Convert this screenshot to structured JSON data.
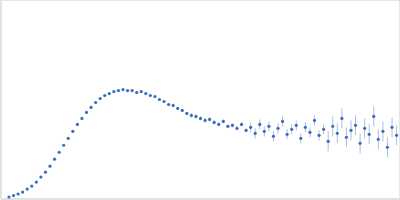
{
  "chart_data": {
    "type": "scatter",
    "color": "#3d6bbd",
    "marker": "circle",
    "grid": true,
    "tick_labels": false,
    "xlim": [
      0,
      0.35
    ],
    "ylim": [
      0,
      0.2
    ],
    "xticks": [
      0.1
    ],
    "yticks": [
      0.1
    ],
    "x": [
      0.007,
      0.011,
      0.015,
      0.019,
      0.023,
      0.027,
      0.031,
      0.035,
      0.039,
      0.043,
      0.047,
      0.051,
      0.055,
      0.059,
      0.063,
      0.067,
      0.071,
      0.075,
      0.079,
      0.083,
      0.087,
      0.091,
      0.095,
      0.099,
      0.103,
      0.107,
      0.111,
      0.115,
      0.119,
      0.123,
      0.127,
      0.131,
      0.135,
      0.139,
      0.143,
      0.147,
      0.151,
      0.155,
      0.159,
      0.163,
      0.167,
      0.171,
      0.175,
      0.179,
      0.183,
      0.187,
      0.191,
      0.195,
      0.199,
      0.203,
      0.207,
      0.211,
      0.215,
      0.219,
      0.223,
      0.227,
      0.231,
      0.235,
      0.239,
      0.243,
      0.247,
      0.251,
      0.255,
      0.259,
      0.263,
      0.267,
      0.271,
      0.275,
      0.279,
      0.283,
      0.287,
      0.291,
      0.295,
      0.299,
      0.303,
      0.307,
      0.311,
      0.315,
      0.319,
      0.323,
      0.327,
      0.331,
      0.335,
      0.339,
      0.343,
      0.347
    ],
    "values": [
      0.002,
      0.0035,
      0.005,
      0.007,
      0.01,
      0.013,
      0.017,
      0.022,
      0.027,
      0.033,
      0.04,
      0.047,
      0.054,
      0.061,
      0.068,
      0.075,
      0.081,
      0.087,
      0.092,
      0.097,
      0.101,
      0.104,
      0.106,
      0.108,
      0.109,
      0.11,
      0.109,
      0.109,
      0.107,
      0.108,
      0.106,
      0.104,
      0.103,
      0.1,
      0.098,
      0.095,
      0.094,
      0.091,
      0.089,
      0.086,
      0.084,
      0.083,
      0.081,
      0.079,
      0.08,
      0.077,
      0.075,
      0.078,
      0.073,
      0.074,
      0.071,
      0.075,
      0.069,
      0.072,
      0.066,
      0.075,
      0.068,
      0.073,
      0.063,
      0.071,
      0.078,
      0.065,
      0.07,
      0.074,
      0.061,
      0.072,
      0.067,
      0.079,
      0.064,
      0.07,
      0.058,
      0.073,
      0.066,
      0.081,
      0.062,
      0.069,
      0.074,
      0.056,
      0.071,
      0.065,
      0.083,
      0.06,
      0.068,
      0.052,
      0.072,
      0.064
    ],
    "error": [
      0.0005,
      0.0005,
      0.0005,
      0.0005,
      0.0005,
      0.0005,
      0.0005,
      0.0005,
      0.0005,
      0.0005,
      0.0005,
      0.0005,
      0.0005,
      0.0005,
      0.0005,
      0.0005,
      0.0005,
      0.0005,
      0.0005,
      0.0005,
      0.0005,
      0.0005,
      0.0005,
      0.0005,
      0.0005,
      0.001,
      0.001,
      0.001,
      0.001,
      0.001,
      0.001,
      0.001,
      0.001,
      0.001,
      0.001,
      0.001,
      0.001,
      0.001,
      0.001,
      0.001,
      0.002,
      0.002,
      0.002,
      0.002,
      0.002,
      0.002,
      0.002,
      0.002,
      0.002,
      0.002,
      0.002,
      0.002,
      0.002,
      0.005,
      0.005,
      0.005,
      0.005,
      0.005,
      0.005,
      0.005,
      0.005,
      0.005,
      0.005,
      0.005,
      0.005,
      0.005,
      0.005,
      0.005,
      0.005,
      0.005,
      0.01,
      0.01,
      0.01,
      0.01,
      0.01,
      0.01,
      0.01,
      0.01,
      0.01,
      0.01,
      0.01,
      0.01,
      0.01,
      0.01,
      0.01,
      0.01
    ]
  }
}
